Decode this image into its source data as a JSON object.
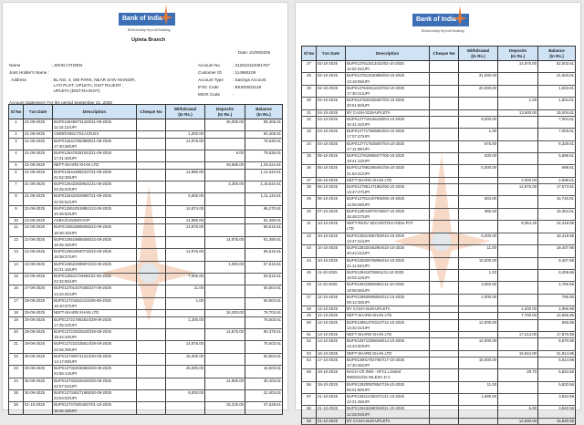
{
  "bank": {
    "name": "Bank of India",
    "tagline": "Relationship beyond banking",
    "branch": "Upleta Branch",
    "brand_color": "#3d6fb6",
    "header_color": "#cfe3f5"
  },
  "statement": {
    "date": "Date: 21/09/2025",
    "name_label": "Name",
    "name": ": JOHN CITIZEN",
    "joint_label": "Joint Holder's Name :",
    "address_label": "Address",
    "address": ": BL NO. 4, OM PARK, NEAR SHIV MANDIR,\n  LATI PLOT, UPLETA, DIST RAJKOT ,\n  UPLETA (DIST.RAJKOT)",
    "account_no_label": "Account No",
    "account_no": ": 312610110001767",
    "customer_id_label": "Customer ID",
    "customer_id": ": 114965109",
    "account_type_label": "Account Type",
    "account_type": ": Savings Account",
    "ifsc_label": "IFSC Code",
    "ifsc": ": BKID0003126",
    "micr_label": "MICR Code",
    "micr": ":",
    "period": "Account Statement: For the period September 21, 2025"
  },
  "columns": [
    "Sl No",
    "Txn Date",
    "Description",
    "Cheque No",
    "Withdrawal\n(In Rs.)",
    "Deposits\n(In Rs.)",
    "Balance\n(In Rs.)"
  ],
  "rows_page1": [
    [
      "1",
      "21-09-2025",
      "BUPI/126468731428/21-09-2025\n11:15:12/UPI",
      "",
      "",
      "45,000.00",
      "95,405.61"
    ],
    [
      "2",
      "21-09-2025",
      "CWDR/25517/S1ACRJ23",
      "",
      "1,000.00",
      "",
      "94,405.61"
    ],
    [
      "3",
      "21-09-2025",
      "BUPI/126417653989/21-09-2025\n17:40:36/UPI",
      "",
      "14,875.00",
      "",
      "79,530.61"
    ],
    [
      "4",
      "21-09-2025",
      "BUPI/126476281042/21-09-2025\n17:41:40/UPI",
      "",
      "",
      "6.00",
      "79,536.61"
    ],
    [
      "5",
      "21-09-2025",
      "NEFT-SHARE KHAN LTD",
      "",
      "",
      "49,688.00",
      "1,29,224.61"
    ],
    [
      "6",
      "21-09-2025",
      "BUPI/126443892237/21-09-2025\n21:52:28/UPI",
      "",
      "14,880.00",
      "",
      "1,14,344.61"
    ],
    [
      "7",
      "21-09-2025",
      "BUPI/126422929631/21-09-2025\n22:25:03/UPI",
      "",
      "",
      "2,300.00",
      "1,16,644.61"
    ],
    [
      "8",
      "21-09-2025",
      "BUPI/126422929987/21-09-2025\n22:26:51/UPI",
      "",
      "5,500.00",
      "",
      "1,11,144.61"
    ],
    [
      "9",
      "22-09-2025",
      "BUPI/126510518861/22-09-2025\n10:46:52/UPI",
      "",
      "14,874.00",
      "",
      "96,270.61"
    ],
    [
      "10",
      "22-09-2025",
      "ASBA/SANSERA03*",
      "",
      "14,880.00",
      "",
      "81,390.61"
    ],
    [
      "11",
      "22-09-2025",
      "BUPI/126519889365/22-09-2025\n18:36:15/UPI",
      "",
      "14,875.00",
      "",
      "66,515.61"
    ],
    [
      "12",
      "22-09-2025",
      "BUPI/126519889365/22-09-2025\n18:36:15/UPI",
      "",
      "",
      "14,875.00",
      "81,390.61"
    ],
    [
      "13",
      "22-09-2025",
      "BUPI/126519940715/22-09-2025\n18:38:27/UPI",
      "",
      "14,875.00",
      "",
      "66,515.61"
    ],
    [
      "14",
      "22-09-2025",
      "BUPI/126522989972/22-09-2025\n22:31:16/UPI",
      "",
      "",
      "1,000.00",
      "67,515.61"
    ],
    [
      "15",
      "22-09-2025",
      "BUPI/126511724892/22-09-2025\n22:32:55/UPI",
      "",
      "7,000.00",
      "",
      "60,515.61"
    ],
    [
      "16",
      "27-09-2025",
      "BUPI/127014370382/27-09-2025\n14:34:31/UPI",
      "",
      "11.00",
      "",
      "60,504.61"
    ],
    [
      "17",
      "29-09-2025",
      "BUPI/127216522115/29-09-2025\n16:10:37/UPI",
      "",
      "1.00",
      "",
      "60,503.61"
    ],
    [
      "18",
      "29-09-2025",
      "NEFT-SHARE KHAN LTD",
      "",
      "",
      "16,200.00",
      "76,703.61"
    ],
    [
      "19",
      "29-09-2025",
      "BUPI/127217862824/29-09-2025\n17:35:22/UPI",
      "",
      "1,200.00",
      "",
      "75,503.61"
    ],
    [
      "20",
      "29-09-2025",
      "BUPI/127219326220/29-09-2025\n19:42:29/UPI",
      "",
      "",
      "14,875.00",
      "90,378.61"
    ],
    [
      "21",
      "29-09-2025",
      "BUPI/127222335614/29-09-2025\n22:26:38/UPI",
      "",
      "14,875.00",
      "",
      "75,503.61"
    ],
    [
      "22",
      "30-09-2025",
      "BUPI/127309741313/30-09-2025\n14:17:08/UPI",
      "",
      "15,000.00",
      "",
      "60,503.61"
    ],
    [
      "23",
      "30-09-2025",
      "BUPI/127322030865/30-09-2025\n22:56:14/UPI",
      "",
      "45,000.00",
      "",
      "15,503.61"
    ],
    [
      "24",
      "30-09-2025",
      "BUPI/127322620420/30-09-2025\n22:57:01/UPI",
      "",
      "",
      "14,900.00",
      "30,403.61"
    ],
    [
      "25",
      "30-09-2025",
      "BUPI/127346271965/30-09-2025\n23:04:02/UPI",
      "",
      "8,000.00",
      "",
      "22,403.61"
    ],
    [
      "26",
      "01-10-2025",
      "BUPI/127474804837/01-10-2025\n18:46:18/UPI",
      "",
      "",
      "15,225.00",
      "37,628.61"
    ]
  ],
  "rows_page2": [
    [
      "27",
      "02-10-2025",
      "BUPI/127511513432/02-10-2025\n11:02:31/UPI",
      "",
      "",
      "14,875.00",
      "52,503.61"
    ],
    [
      "28",
      "02-10-2025",
      "BUPI/127513180860/02-10-2025\n13:18:05/UPI",
      "",
      "31,000.00",
      "",
      "21,503.61"
    ],
    [
      "29",
      "02-10-2025",
      "BUPI/127543912237/02-10-2025\n17:30:21/UPI",
      "",
      "20,000.00",
      "",
      "1,503.61"
    ],
    [
      "30",
      "02-10-2025",
      "BUPI/127520425367/02-10-2025\n20:51:50/UPI",
      "",
      "",
      "1.00",
      "1,504.61"
    ],
    [
      "31",
      "04-10-2025",
      "BY CASH-3126-UPLETA",
      "",
      "",
      "13,500.00",
      "15,004.61"
    ],
    [
      "32",
      "04-10-2025",
      "BUPI/127716156108/04-10-2025\n16:41:42/UPI",
      "",
      "8,000.00",
      "",
      "7,004.61"
    ],
    [
      "33",
      "04-10-2025",
      "BUPI/127717566654/04-10-2025\n17:07:47/UPI",
      "",
      "1.00",
      "",
      "7,003.61"
    ],
    [
      "34",
      "04-10-2025",
      "BUPI/127717625097/04-10-2025\n17:11:08/UPI",
      "",
      "675.00",
      "",
      "6,328.61"
    ],
    [
      "35",
      "05-10-2025",
      "BUPI/127818966077/05-10-2025\n18:41:12/UPI",
      "",
      "630.00",
      "",
      "5,698.61"
    ],
    [
      "36",
      "05-10-2025",
      "BUPI/127892366461/05-10-2025\n21:54:31/UPI",
      "",
      "5,000.00",
      "",
      "698.61"
    ],
    [
      "37",
      "06-10-2025",
      "NEFT-SHARE KHAN LTD",
      "",
      "",
      "2,000.00",
      "2,698.61"
    ],
    [
      "38",
      "06-10-2025",
      "BUPI/127961471862/06-10-2025\n13:47:47/UPI",
      "",
      "",
      "14,875.00",
      "17,573.61"
    ],
    [
      "39",
      "06-10-2025",
      "BUPI/127914407936/06-10-2025\n14:06:08/UPI",
      "",
      "833.00",
      "",
      "16,740.61"
    ],
    [
      "40",
      "07-10-2025",
      "BUPI/128019079739/07-10-2025\n16:48:27/UPI",
      "",
      "386.00",
      "",
      "16,354.61"
    ],
    [
      "41",
      "10-10-2025",
      "NEFT-RKSV SECURITIES INDIA PVT\nLTD",
      "",
      "",
      "8,064.25",
      "24,418.86"
    ],
    [
      "42",
      "10-10-2025",
      "BUPI/128313587939/10-10-2025\n13:47:41/UPI",
      "",
      "6,000.00",
      "",
      "18,418.86"
    ],
    [
      "43",
      "10-10-2025",
      "BUPI/128320462904/10-10-2025\n20:42:21/UPI",
      "",
      "11.00",
      "",
      "18,407.86"
    ],
    [
      "44",
      "10-10-2025",
      "BUPI/128329768060/10-10-2025\n21:11:54/UPI",
      "",
      "10,000.00",
      "",
      "8,407.86"
    ],
    [
      "45",
      "11-10-2025",
      "BUPI/128418755911/11-10-2025\n18:02:12/UPI",
      "",
      "1.00",
      "",
      "8,406.86"
    ],
    [
      "46",
      "11-10-2025",
      "BUPI/128418846551/11-10-2025\n18:06:55/UPI",
      "",
      "3,650.00",
      "",
      "4,756.86"
    ],
    [
      "47",
      "12-10-2025",
      "BUPI/128509588520/12-10-2025\n09:12:38/UPI",
      "",
      "4,000.00",
      "",
      "756.86"
    ],
    [
      "48",
      "12-10-2025",
      "BY CASH-3126-UPLETA",
      "",
      "",
      "4,200.00",
      "4,956.86"
    ],
    [
      "49",
      "12-10-2025",
      "NEFT-SHARE KHAN LTD",
      "",
      "",
      "7,700.00",
      "12,656.86"
    ],
    [
      "50",
      "12-10-2025",
      "BUPI/128513703137/12-10-2025\n13:32:21/UPI",
      "",
      "12,000.00",
      "",
      "656.86"
    ],
    [
      "51",
      "14-10-2025",
      "NEFT-SHARE KHAN LTD",
      "",
      "",
      "17,214.00",
      "17,870.86"
    ],
    [
      "52",
      "14-10-2025",
      "BUPI/128713368168/14-10-2025\n13:43:40/UPI",
      "",
      "12,000.00",
      "",
      "5,870.86"
    ],
    [
      "53",
      "16-10-2025",
      "NEFT-SHARE KHAN LTD",
      "",
      "",
      "15,944.00",
      "21,814.86"
    ],
    [
      "54",
      "17-10-2025",
      "BUPI/129017927067/17-10-2025\n17:40:46/UPI",
      "",
      "16,000.00",
      "",
      "5,814.86"
    ],
    [
      "55",
      "18-10-2025",
      "NACH CR INW - HFCL Limited\n5902024/16  NILESH D C",
      "",
      "",
      "29.70",
      "5,844.56"
    ],
    [
      "56",
      "19-10-2025",
      "BUPI/129200878647/19-10-2025\n06:01:56/UPI",
      "",
      "11.00",
      "",
      "5,833.56"
    ],
    [
      "57",
      "21-10-2025",
      "BUPI/129412460471/21-10-2025\n12:21:45/UPI",
      "",
      "1,999.00",
      "",
      "3,834.56"
    ],
    [
      "58",
      "21-10-2025",
      "BUPI/129433680048/21-10-2025\n12:28:03/UPI",
      "",
      "",
      "6.00",
      "3,840.56"
    ],
    [
      "59",
      "21-10-2025",
      "BY CASH-3126-UPLETA",
      "",
      "",
      "12,000.00",
      "15,840.56"
    ]
  ]
}
